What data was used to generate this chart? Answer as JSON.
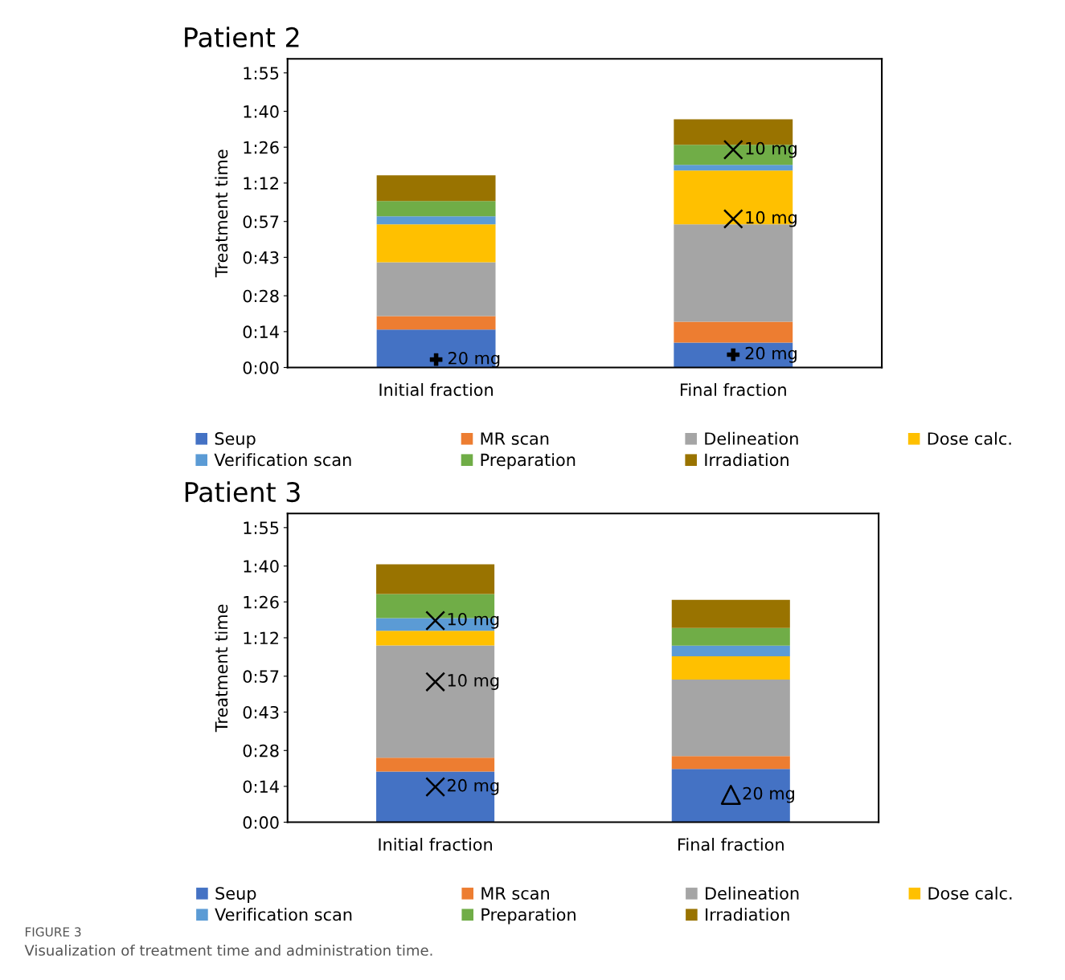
{
  "chart_data": [
    {
      "type": "bar",
      "stacked": true,
      "title": "Patient 2",
      "ylabel": "Treatment time",
      "categories": [
        "Initial fraction",
        "Final fraction"
      ],
      "series": [
        {
          "name": "Seup",
          "color": "#4472c4",
          "values": [
            14.8,
            9.7
          ]
        },
        {
          "name": "MR scan",
          "color": "#ed7d31",
          "values": [
            5.3,
            8.2
          ]
        },
        {
          "name": "Delineation",
          "color": "#a5a5a5",
          "values": [
            21,
            38
          ]
        },
        {
          "name": "Dose calc.",
          "color": "#ffc000",
          "values": [
            14.8,
            21
          ]
        },
        {
          "name": "Verification scan",
          "color": "#5b9bd5",
          "values": [
            3.1,
            2.2
          ]
        },
        {
          "name": "Preparation",
          "color": "#70ad47",
          "values": [
            6,
            7.8
          ]
        },
        {
          "name": "Irradiation",
          "color": "#997300",
          "values": [
            10,
            10
          ]
        },
        {
          "type": "scatter",
          "name": "20 mg",
          "marker": "plus",
          "color": "#000000",
          "values": [
            3.1,
            null
          ]
        },
        {
          "type": "scatter",
          "name": "20 mg",
          "marker": "plus",
          "color": "#000000",
          "values": [
            null,
            5
          ]
        },
        {
          "type": "scatter",
          "name": "10 mg",
          "marker": "cross",
          "color": "#000000",
          "values": [
            null,
            85
          ]
        },
        {
          "type": "scatter",
          "name": "10 mg",
          "marker": "cross",
          "color": "#000000",
          "values": [
            null,
            58
          ]
        }
      ],
      "ylim": [
        0,
        120.5
      ],
      "yticks": [
        {
          "value": 0,
          "label": "0:00"
        },
        {
          "value": 14,
          "label": "0:14"
        },
        {
          "value": 28,
          "label": "0:28"
        },
        {
          "value": 43,
          "label": "0:43"
        },
        {
          "value": 57,
          "label": "0:57"
        },
        {
          "value": 72,
          "label": "1:12"
        },
        {
          "value": 86,
          "label": "1:26"
        },
        {
          "value": 100,
          "label": "1:40"
        },
        {
          "value": 115,
          "label": "1:55"
        }
      ],
      "grid": false,
      "legend": "bottom"
    },
    {
      "type": "bar",
      "stacked": true,
      "title": "Patient 3",
      "ylabel": "Treatment time",
      "categories": [
        "Initial fraction",
        "Final fraction"
      ],
      "series": [
        {
          "name": "Seup",
          "color": "#4472c4",
          "values": [
            19.8,
            20.8
          ]
        },
        {
          "name": "MR scan",
          "color": "#ed7d31",
          "values": [
            5.4,
            5
          ]
        },
        {
          "name": "Delineation",
          "color": "#a5a5a5",
          "values": [
            43.8,
            29.9
          ]
        },
        {
          "name": "Dose calc.",
          "color": "#ffc000",
          "values": [
            5.7,
            9.1
          ]
        },
        {
          "name": "Verification scan",
          "color": "#5b9bd5",
          "values": [
            5,
            4.1
          ]
        },
        {
          "name": "Preparation",
          "color": "#70ad47",
          "values": [
            9.4,
            6.9
          ]
        },
        {
          "name": "Irradiation",
          "color": "#997300",
          "values": [
            11.6,
            11
          ]
        },
        {
          "type": "scatter",
          "name": "10 mg",
          "marker": "cross",
          "color": "#000000",
          "values": [
            78.7,
            null
          ]
        },
        {
          "type": "scatter",
          "name": "10 mg",
          "marker": "cross",
          "color": "#000000",
          "values": [
            54.8,
            null
          ]
        },
        {
          "type": "scatter",
          "name": "20 mg",
          "marker": "cross",
          "color": "#000000",
          "values": [
            13.8,
            null
          ]
        },
        {
          "type": "scatter",
          "name": "20 mg",
          "marker": "triangle",
          "color": "#000000",
          "values": [
            null,
            10.7
          ]
        }
      ],
      "ylim": [
        0,
        120.5
      ],
      "yticks": [
        {
          "value": 0,
          "label": "0:00"
        },
        {
          "value": 14,
          "label": "0:14"
        },
        {
          "value": 28,
          "label": "0:28"
        },
        {
          "value": 43,
          "label": "0:43"
        },
        {
          "value": 57,
          "label": "0:57"
        },
        {
          "value": 72,
          "label": "1:12"
        },
        {
          "value": 86,
          "label": "1:26"
        },
        {
          "value": 100,
          "label": "1:40"
        },
        {
          "value": 115,
          "label": "1:55"
        }
      ],
      "grid": false,
      "legend": "bottom",
      "annotations": [
        "FIGURE 3",
        "Visualization of treatment time and administration time."
      ]
    }
  ]
}
